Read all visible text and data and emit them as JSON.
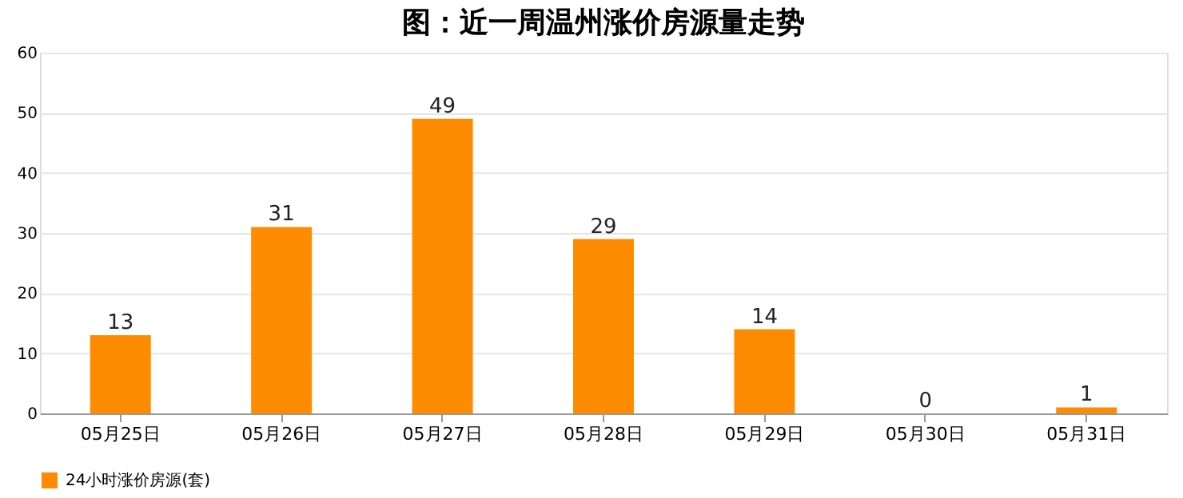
{
  "chart_data": {
    "type": "bar",
    "title": "图：近一周温州涨价房源量走势",
    "categories": [
      "05月25日",
      "05月26日",
      "05月27日",
      "05月28日",
      "05月29日",
      "05月30日",
      "05月31日"
    ],
    "series": [
      {
        "name": "24小时涨价房源(套)",
        "color": "#ff8c00",
        "values": [
          13,
          31,
          49,
          29,
          14,
          0,
          1
        ]
      }
    ],
    "ylim": [
      0,
      60
    ],
    "yticks": [
      0,
      10,
      20,
      30,
      40,
      50,
      60
    ],
    "grid": "y",
    "legend": "bottom",
    "data_labels": true
  }
}
